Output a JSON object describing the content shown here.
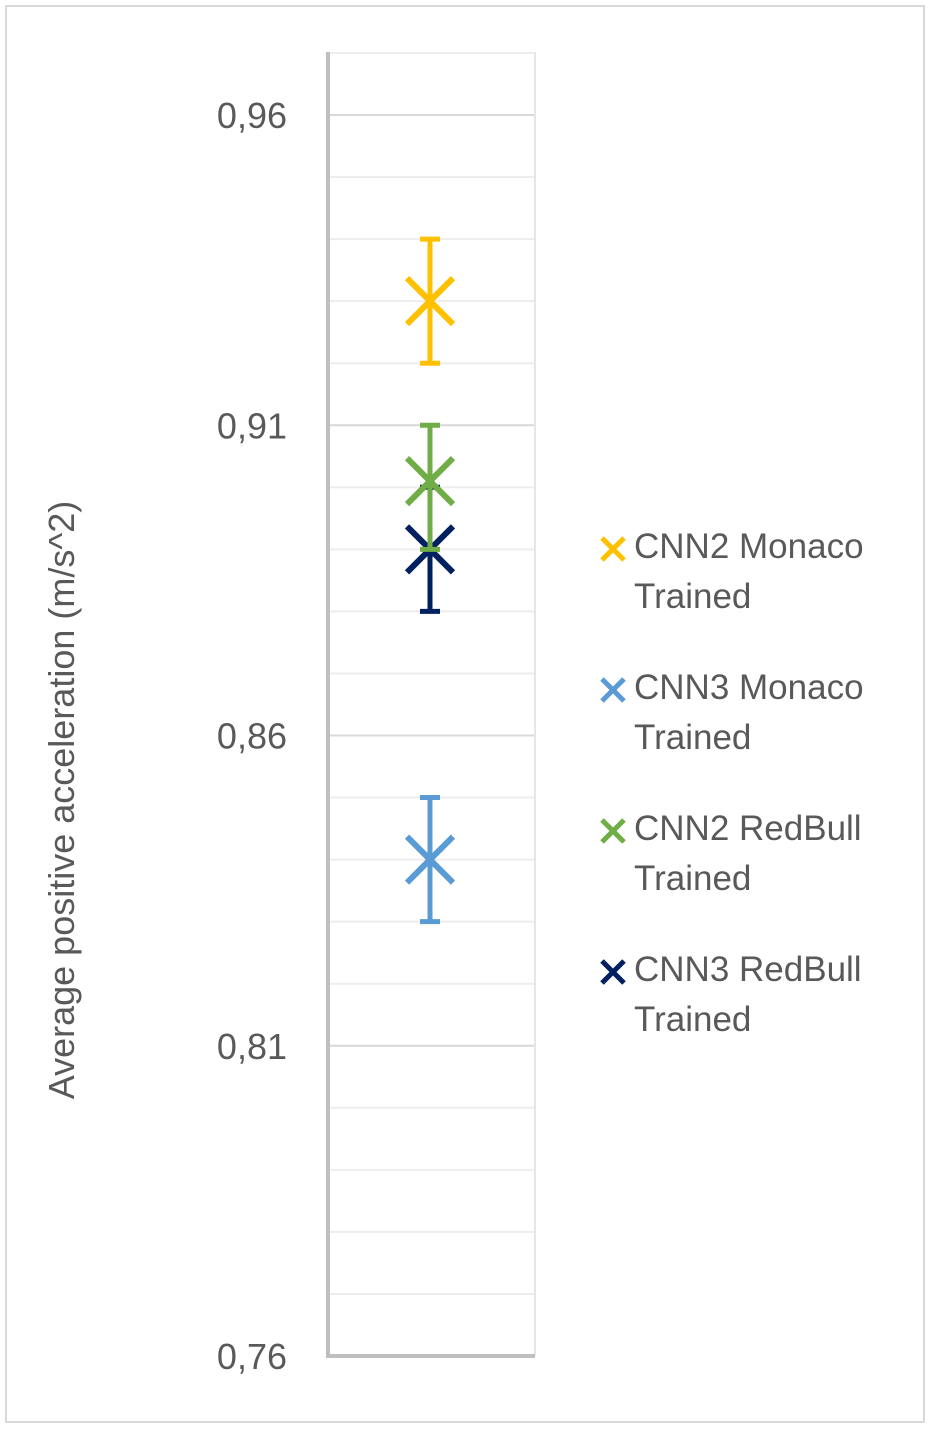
{
  "chart_data": {
    "type": "scatter",
    "title": "",
    "xlabel": "",
    "ylabel": "Average positive acceleration (m/s^2)",
    "ylim": [
      0.76,
      0.97
    ],
    "yticks": [
      "0,96",
      "0,91",
      "0,86",
      "0,81",
      "0,76"
    ],
    "ytick_values": [
      0.96,
      0.91,
      0.86,
      0.81,
      0.76
    ],
    "minor_gridline_step": 0.01,
    "grid": true,
    "legend_position": "right",
    "series": [
      {
        "name": "CNN2 Monaco Trained",
        "legend_line1": "CNN2 Monaco",
        "legend_line2": "Trained",
        "y": 0.93,
        "error_low": 0.92,
        "error_high": 0.94,
        "color": "#FFC000"
      },
      {
        "name": "CNN3 Monaco Trained",
        "legend_line1": "CNN3 Monaco",
        "legend_line2": "Trained",
        "y": 0.84,
        "error_low": 0.83,
        "error_high": 0.85,
        "color": "#5B9BD5"
      },
      {
        "name": "CNN2 RedBull Trained",
        "legend_line1": "CNN2 RedBull",
        "legend_line2": "Trained",
        "y": 0.901,
        "error_low": 0.89,
        "error_high": 0.91,
        "color": "#70AD47"
      },
      {
        "name": "CNN3 RedBull Trained",
        "legend_line1": "CNN3 RedBull",
        "legend_line2": "Trained",
        "y": 0.89,
        "error_low": 0.88,
        "error_high": 0.9,
        "color": "#002060"
      }
    ]
  }
}
